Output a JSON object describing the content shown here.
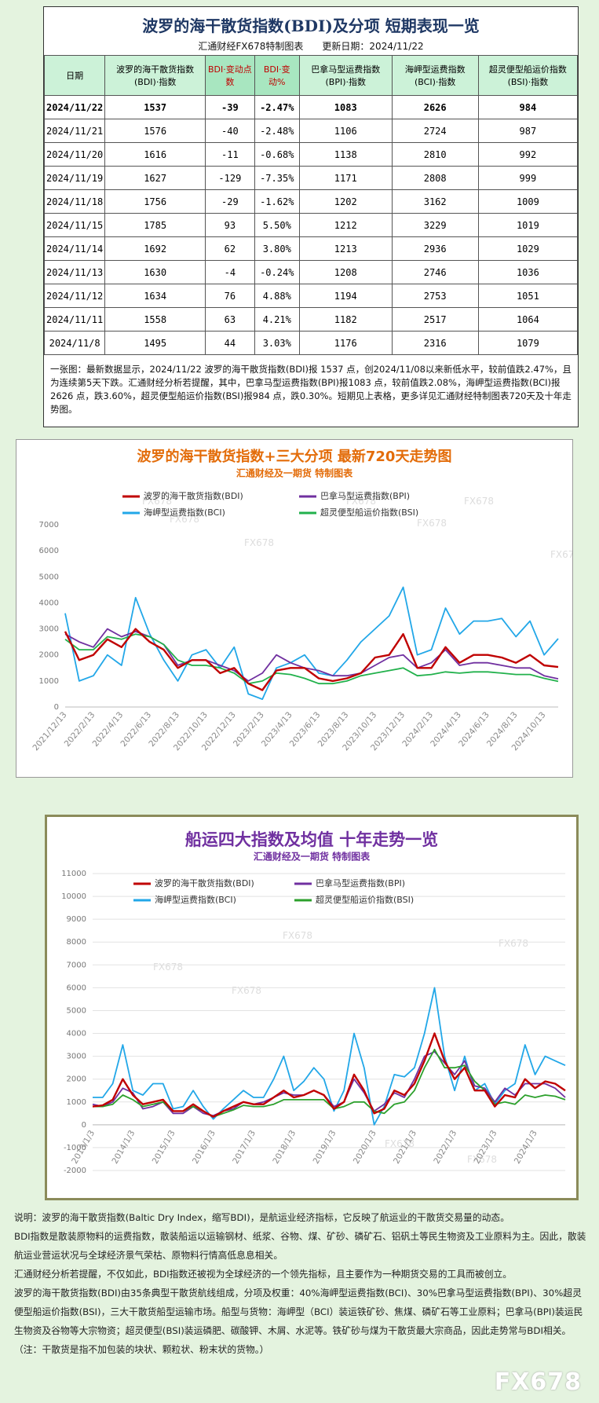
{
  "table": {
    "title": "波罗的海干散货指数(BDI)及分项 短期表现一览",
    "subtitle": "汇通财经FX678特制图表　　更新日期：2024/11/22",
    "columns": [
      "日期",
      "波罗的海干散货指数(BDI)·指数",
      "BDI·变动点数",
      "BDI·变动%",
      "巴拿马型运费指数(BPI)·指数",
      "海岬型运费指数(BCI)·指数",
      "超灵便型船运价指数(BSI)·指数"
    ],
    "rows": [
      [
        "2024/11/22",
        "1537",
        "-39",
        "-2.47%",
        "1083",
        "2626",
        "984"
      ],
      [
        "2024/11/21",
        "1576",
        "-40",
        "-2.48%",
        "1106",
        "2724",
        "987"
      ],
      [
        "2024/11/20",
        "1616",
        "-11",
        "-0.68%",
        "1138",
        "2810",
        "992"
      ],
      [
        "2024/11/19",
        "1627",
        "-129",
        "-7.35%",
        "1171",
        "2808",
        "999"
      ],
      [
        "2024/11/18",
        "1756",
        "-29",
        "-1.62%",
        "1202",
        "3162",
        "1009"
      ],
      [
        "2024/11/15",
        "1785",
        "93",
        "5.50%",
        "1212",
        "3229",
        "1019"
      ],
      [
        "2024/11/14",
        "1692",
        "62",
        "3.80%",
        "1213",
        "2936",
        "1029"
      ],
      [
        "2024/11/13",
        "1630",
        "-4",
        "-0.24%",
        "1208",
        "2746",
        "1036"
      ],
      [
        "2024/11/12",
        "1634",
        "76",
        "4.88%",
        "1194",
        "2753",
        "1051"
      ],
      [
        "2024/11/11",
        "1558",
        "63",
        "4.21%",
        "1182",
        "2517",
        "1064"
      ],
      [
        "2024/11/8",
        "1495",
        "44",
        "3.03%",
        "1176",
        "2316",
        "1079"
      ]
    ],
    "note": "一张图：最新数据显示，2024/11/22 波罗的海干散货指数(BDI)报 1537 点，创2024/11/08以来新低水平，较前值跌2.47%，且为连续第5天下跌。汇通财经分析若提醒，其中，巴拿马型运费指数(BPI)报1083 点，较前值跌2.08%，海岬型运费指数(BCI)报2626 点，跌3.60%，超灵便型船运价指数(BSI)报984 点，跌0.30%。短期见上表格，更多详见汇通财经特制图表720天及十年走势图。"
  },
  "chart_data": [
    {
      "type": "line",
      "title": "波罗的海干散货指数+三大分项  最新720天走势图",
      "subtitle": "汇通财经及一期货  特制图表",
      "categories": [
        "2021/12/13",
        null,
        "2022/2/13",
        null,
        "2022/4/13",
        null,
        "2022/6/13",
        null,
        "2022/8/13",
        null,
        "2022/10/13",
        null,
        "2022/12/13",
        null,
        "2023/2/13",
        null,
        "2023/4/13",
        null,
        "2023/6/13",
        null,
        "2023/8/13",
        null,
        "2023/10/13",
        null,
        "2023/12/13",
        null,
        "2024/2/13",
        null,
        "2024/4/13",
        null,
        "2024/6/13",
        null,
        "2024/8/13",
        null,
        "2024/10/13",
        null
      ],
      "series": [
        {
          "name": "波罗的海干散货指数(BDI)",
          "color": "#c00000",
          "values": [
            2900,
            1800,
            2000,
            2600,
            2300,
            3000,
            2500,
            2200,
            1500,
            1800,
            1800,
            1300,
            1500,
            900,
            650,
            1400,
            1500,
            1500,
            1100,
            1000,
            1100,
            1300,
            1900,
            2000,
            2800,
            1500,
            1500,
            2300,
            1700,
            2000,
            2000,
            1900,
            1700,
            2000,
            1600,
            1537
          ]
        },
        {
          "name": "巴拿马型运费指数(BPI)",
          "color": "#7030a0",
          "values": [
            2800,
            2500,
            2300,
            3000,
            2700,
            2900,
            2700,
            2400,
            1600,
            1800,
            1800,
            1600,
            1400,
            1000,
            1300,
            2000,
            1700,
            1500,
            1400,
            1200,
            1200,
            1300,
            1600,
            1900,
            2000,
            1500,
            1700,
            2200,
            1600,
            1700,
            1700,
            1600,
            1500,
            1500,
            1200,
            1083
          ]
        },
        {
          "name": "海岬型运费指数(BCI)",
          "color": "#22a7e8",
          "values": [
            3600,
            1000,
            1200,
            2000,
            1600,
            4200,
            2800,
            1800,
            1000,
            2000,
            2200,
            1500,
            2300,
            500,
            300,
            1500,
            1700,
            2000,
            1300,
            1200,
            1800,
            2500,
            3000,
            3500,
            4600,
            2000,
            2200,
            3800,
            2800,
            3300,
            3300,
            3400,
            2700,
            3300,
            2000,
            2626
          ]
        },
        {
          "name": "超灵便型船运价指数(BSI)",
          "color": "#22b14c",
          "values": [
            2600,
            2200,
            2200,
            2700,
            2600,
            2800,
            2700,
            2400,
            1800,
            1600,
            1600,
            1500,
            1300,
            900,
            1000,
            1300,
            1250,
            1100,
            900,
            900,
            1000,
            1200,
            1300,
            1400,
            1500,
            1200,
            1250,
            1350,
            1300,
            1350,
            1350,
            1300,
            1250,
            1250,
            1100,
            984
          ]
        }
      ],
      "ylim": [
        0,
        7000
      ],
      "yticks": [
        0,
        1000,
        2000,
        3000,
        4000,
        5000,
        6000,
        7000
      ],
      "grid": false
    },
    {
      "type": "line",
      "title": "船运四大指数及均值 十年走势一览",
      "subtitle": "汇通财经及一期货 特制图表",
      "categories": [
        "2013/1/3",
        null,
        null,
        null,
        "2014/1/3",
        null,
        null,
        null,
        "2015/1/3",
        null,
        null,
        null,
        "2016/1/3",
        null,
        null,
        null,
        "2017/1/3",
        null,
        null,
        null,
        "2018/1/3",
        null,
        null,
        null,
        "2019/1/3",
        null,
        null,
        null,
        "2020/1/3",
        null,
        null,
        null,
        "2021/1/3",
        null,
        null,
        null,
        "2022/1/3",
        null,
        null,
        null,
        "2023/1/3",
        null,
        null,
        null,
        "2024/1/3",
        null,
        null,
        null
      ],
      "series": [
        {
          "name": "波罗的海干散货指数(BDI)",
          "color": "#c00000",
          "values": [
            800,
            850,
            1100,
            2000,
            1300,
            900,
            1000,
            1100,
            600,
            600,
            900,
            600,
            350,
            600,
            800,
            1000,
            900,
            900,
            1200,
            1500,
            1200,
            1300,
            1500,
            1300,
            700,
            1000,
            2200,
            1500,
            500,
            700,
            1500,
            1300,
            1800,
            2800,
            4000,
            2800,
            2000,
            2500,
            1500,
            1500,
            800,
            1300,
            1200,
            2000,
            1600,
            1900,
            1800,
            1500
          ]
        },
        {
          "name": "巴拿马型运费指数(BPI)",
          "color": "#7030a0",
          "values": [
            900,
            800,
            1000,
            1600,
            1400,
            700,
            800,
            1000,
            500,
            500,
            800,
            500,
            400,
            600,
            700,
            1000,
            900,
            1000,
            1200,
            1400,
            1300,
            1300,
            1500,
            1300,
            800,
            1000,
            2000,
            1400,
            600,
            900,
            1400,
            1200,
            2000,
            3000,
            3200,
            2700,
            2200,
            2800,
            1700,
            1600,
            1000,
            1600,
            1300,
            1800,
            1800,
            1800,
            1600,
            1200
          ]
        },
        {
          "name": "海岬型运费指数(BCI)",
          "color": "#22a7e8",
          "values": [
            1200,
            1200,
            1800,
            3500,
            1500,
            1300,
            1800,
            1800,
            700,
            800,
            1500,
            800,
            250,
            700,
            1100,
            1500,
            1200,
            1200,
            2000,
            3000,
            1500,
            1900,
            2500,
            2000,
            600,
            1500,
            4000,
            2500,
            0,
            800,
            2200,
            2100,
            2500,
            4000,
            6000,
            3000,
            1500,
            3000,
            1500,
            1800,
            900,
            1500,
            1800,
            3500,
            2200,
            3000,
            2800,
            2600
          ]
        },
        {
          "name": "超灵便型船运价指数(BSI)",
          "color": "#2ca02c",
          "values": [
            800,
            800,
            900,
            1300,
            1100,
            800,
            900,
            1000,
            600,
            600,
            800,
            600,
            350,
            500,
            650,
            850,
            800,
            800,
            900,
            1100,
            1100,
            1100,
            1100,
            1100,
            700,
            800,
            1000,
            1000,
            600,
            500,
            900,
            1000,
            1500,
            2500,
            3300,
            2500,
            2500,
            2600,
            1900,
            1500,
            900,
            1000,
            900,
            1300,
            1200,
            1300,
            1250,
            1100
          ]
        }
      ],
      "ylim": [
        -2000,
        11000
      ],
      "yticks": [
        -2000,
        -1000,
        0,
        1000,
        2000,
        3000,
        4000,
        5000,
        6000,
        7000,
        8000,
        9000,
        10000,
        11000
      ],
      "grid": true
    }
  ],
  "watermark": "FX678",
  "notes": [
    "说明：波罗的海干散货指数(Baltic Dry Index，缩写BDI)，是航运业经济指标，它反映了航运业的干散货交易量的动态。",
    "BDI指数是散装原物料的运费指数，散装船运以运输钢材、纸浆、谷物、煤、矿砂、磷矿石、铝矾土等民生物资及工业原料为主。因此，散装航运业营运状况与全球经济景气荣枯、原物料行情高低息息相关。",
    "汇通财经分析若提醒，不仅如此，BDI指数还被视为全球经济的一个领先指标，且主要作为一种期货交易的工具而被创立。",
    "波罗的海干散货指数(BDI)由35条典型干散货航线组成，分项及权重：40%海岬型运费指数(BCI)、30%巴拿马型运费指数(BPI)、30%超灵便型船运价指数(BSI)，三大干散货船型运输市场。船型与货物：海岬型（BCI）装运铁矿砂、焦煤、磷矿石等工业原料；巴拿马(BPI)装运民生物资及谷物等大宗物资；超灵便型(BSI)装运磷肥、碳酸钾、木屑、水泥等。铁矿砂与煤为干散货最大宗商品，因此走势常与BDI相关。（注：干散货是指不加包装的块状、颗粒状、粉末状的货物。）"
  ]
}
